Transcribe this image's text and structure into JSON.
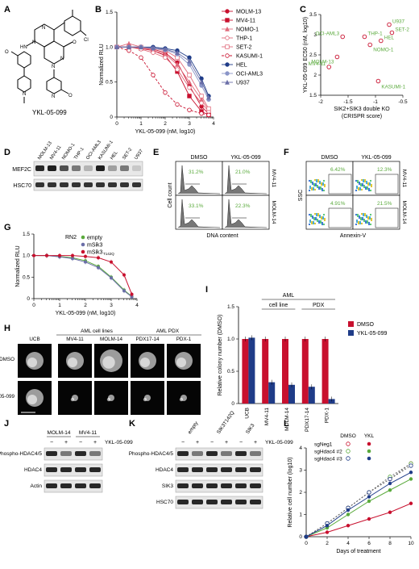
{
  "colors": {
    "red": "#c8102e",
    "pink": "#e06b7c",
    "blue": "#1f3c88",
    "lightblue": "#8a95c8",
    "green": "#5aaa3c",
    "purple": "#6b6fa8",
    "gray": "#bdbdbd"
  },
  "panels": {
    "A": {
      "letter": "A",
      "name": "YKL-05-099"
    },
    "B": {
      "letter": "B",
      "chart_data": {
        "type": "line",
        "xlabel": "YKL-05-099 (nM, log10)",
        "ylabel": "Normalized RLU",
        "xlim": [
          0,
          4
        ],
        "ylim": [
          0,
          1.5
        ],
        "xticks": [
          0,
          1,
          2,
          3,
          4
        ],
        "yticks": [
          0,
          0.5,
          1.0,
          1.5
        ],
        "series": [
          {
            "name": "MOLM-13",
            "color": "#c8102e",
            "marker": "circle-filled",
            "dash": false,
            "x": [
              0,
              0.5,
              1,
              1.5,
              2,
              2.5,
              3,
              3.5,
              3.8
            ],
            "y": [
              1.0,
              1.0,
              1.0,
              0.97,
              0.92,
              0.78,
              0.45,
              0.15,
              0.05
            ]
          },
          {
            "name": "MV4-11",
            "color": "#c8102e",
            "marker": "square-filled",
            "dash": false,
            "x": [
              0,
              0.5,
              1,
              1.5,
              2,
              2.5,
              3,
              3.5,
              3.8
            ],
            "y": [
              1.0,
              1.0,
              0.98,
              0.95,
              0.88,
              0.65,
              0.3,
              0.08,
              0.03
            ]
          },
          {
            "name": "NOMO-1",
            "color": "#e06b7c",
            "marker": "triangle-filled",
            "dash": false,
            "x": [
              0,
              0.5,
              1,
              1.5,
              2,
              2.5,
              3,
              3.5,
              3.8
            ],
            "y": [
              1.0,
              1.05,
              1.0,
              0.95,
              0.9,
              0.75,
              0.5,
              0.25,
              0.1
            ]
          },
          {
            "name": "THP-1",
            "color": "#e06b7c",
            "marker": "circle-open",
            "dash": false,
            "x": [
              0,
              0.5,
              1,
              1.5,
              2,
              2.5,
              3,
              3.5,
              3.8
            ],
            "y": [
              1.0,
              1.0,
              0.97,
              0.92,
              0.85,
              0.68,
              0.42,
              0.2,
              0.08
            ]
          },
          {
            "name": "SET-2",
            "color": "#e06b7c",
            "marker": "square-open",
            "dash": false,
            "x": [
              0,
              0.5,
              1,
              1.5,
              2,
              2.5,
              3,
              3.5,
              3.8
            ],
            "y": [
              1.0,
              1.0,
              1.0,
              0.98,
              0.95,
              0.85,
              0.6,
              0.3,
              0.12
            ]
          },
          {
            "name": "KASUMI-1",
            "color": "#c8102e",
            "marker": "circle-open",
            "dash": true,
            "x": [
              0,
              0.5,
              1,
              1.5,
              2,
              2.5,
              3,
              3.5,
              3.8
            ],
            "y": [
              1.0,
              0.95,
              0.85,
              0.6,
              0.35,
              0.18,
              0.1,
              0.05,
              0.03
            ]
          },
          {
            "name": "HEL",
            "color": "#1f3c88",
            "marker": "circle-filled",
            "dash": false,
            "x": [
              0,
              0.5,
              1,
              1.5,
              2,
              2.5,
              3,
              3.5,
              3.8
            ],
            "y": [
              1.0,
              1.0,
              1.0,
              1.0,
              0.98,
              0.95,
              0.85,
              0.55,
              0.3
            ]
          },
          {
            "name": "OCI-AML3",
            "color": "#8a95c8",
            "marker": "circle-filled",
            "dash": false,
            "x": [
              0,
              0.5,
              1,
              1.5,
              2,
              2.5,
              3,
              3.5,
              3.8
            ],
            "y": [
              1.0,
              1.0,
              1.0,
              0.98,
              0.96,
              0.9,
              0.75,
              0.45,
              0.25
            ]
          },
          {
            "name": "U937",
            "color": "#6b6fa8",
            "marker": "triangle-filled",
            "dash": false,
            "x": [
              0,
              0.5,
              1,
              1.5,
              2,
              2.5,
              3,
              3.5,
              3.8
            ],
            "y": [
              1.0,
              1.0,
              1.0,
              0.99,
              0.97,
              0.92,
              0.8,
              0.5,
              0.28
            ]
          }
        ]
      }
    },
    "C": {
      "letter": "C",
      "chart_data": {
        "type": "scatter",
        "xlabel": "SIK2+SIK3 double KO",
        "xlabel2": "(CRISPR score)",
        "ylabel": "YKL-05-099 EC50 (nM, log10)",
        "xlim": [
          -2.0,
          -0.5
        ],
        "ylim": [
          1.5,
          3.5
        ],
        "xticks": [
          "-2",
          "-1.5",
          "-1",
          "-0.5"
        ],
        "yticks": [
          "1.5",
          "2",
          "2.5",
          "3",
          "3.5"
        ],
        "points": [
          {
            "label": "U937",
            "x": -0.75,
            "y": 3.25
          },
          {
            "label": "SET-2",
            "x": -0.7,
            "y": 3.05
          },
          {
            "label": "THP-1",
            "x": -1.2,
            "y": 2.95
          },
          {
            "label": "OCI-AML3",
            "x": -1.6,
            "y": 2.95
          },
          {
            "label": "HEL",
            "x": -0.9,
            "y": 2.85
          },
          {
            "label": "NOMO-1",
            "x": -1.1,
            "y": 2.75
          },
          {
            "label": "MOLM-13",
            "x": -1.7,
            "y": 2.45
          },
          {
            "label": "MV4-11",
            "x": -1.85,
            "y": 2.2
          },
          {
            "label": "KASUMI-1",
            "x": -0.95,
            "y": 1.85
          }
        ]
      }
    },
    "D": {
      "letter": "D",
      "lanes": [
        "MOLM-13",
        "MV4-11",
        "NOMO-1",
        "THP-1",
        "OCI-AML3",
        "KASUMI-1",
        "HEL",
        "SET-2",
        "U937"
      ],
      "rows": [
        "MEF2C",
        "HSC70"
      ],
      "mef2c_intensity": [
        0.9,
        0.95,
        0.7,
        0.5,
        0.2,
        0.95,
        0.3,
        0.5,
        0.1
      ]
    },
    "E": {
      "letter": "E",
      "cols": [
        "DMSO",
        "YKL-05-099"
      ],
      "rows": [
        "MV4-11",
        "MOLM-14"
      ],
      "pct": [
        "31.2%",
        "21.0%",
        "33.1%",
        "22.3%"
      ],
      "ylabel": "Cell count",
      "xlabel": "DNA content"
    },
    "F": {
      "letter": "F",
      "cols": [
        "DMSO",
        "YKL-05-099"
      ],
      "rows": [
        "MV4-11",
        "MOLM-14"
      ],
      "pct": [
        "6.42%",
        "12.3%",
        "4.91%",
        "21.5%"
      ],
      "ylabel": "SSC",
      "xlabel": "Annexin-V"
    },
    "G": {
      "letter": "G",
      "chart_data": {
        "type": "line",
        "xlabel": "YKL-05-099 (nM, log10)",
        "ylabel": "Normalized RLU",
        "xlim": [
          0,
          4
        ],
        "ylim": [
          0,
          1.5
        ],
        "xticks": [
          0,
          1,
          2,
          3,
          4
        ],
        "yticks": [
          0,
          0.5,
          1.0,
          1.5
        ],
        "legend_title": "RN2",
        "series": [
          {
            "name": "empty",
            "color": "#5aaa3c",
            "x": [
              0,
              0.5,
              1,
              1.5,
              2,
              2.5,
              3,
              3.5,
              3.8
            ],
            "y": [
              1.0,
              1.0,
              0.98,
              0.95,
              0.88,
              0.75,
              0.5,
              0.2,
              0.05
            ]
          },
          {
            "name": "mSik3",
            "color": "#6b6fa8",
            "x": [
              0,
              0.5,
              1,
              1.5,
              2,
              2.5,
              3,
              3.5,
              3.8
            ],
            "y": [
              1.0,
              1.0,
              0.97,
              0.93,
              0.85,
              0.72,
              0.48,
              0.18,
              0.04
            ]
          },
          {
            "name": "mSik3 T142Q",
            "color": "#c8102e",
            "x": [
              0,
              0.5,
              1,
              1.5,
              2,
              2.5,
              3,
              3.5,
              3.8
            ],
            "y": [
              1.0,
              1.0,
              1.0,
              1.0,
              0.98,
              0.95,
              0.85,
              0.55,
              0.1
            ]
          }
        ]
      }
    },
    "H": {
      "letter": "H",
      "groups": [
        "AML cell lines",
        "AML PDX"
      ],
      "cols": [
        "UCB",
        "MV4-11",
        "MOLM-14",
        "PDX17-14",
        "PDX-1"
      ],
      "rows": [
        "DMSO",
        "YKL-05-099"
      ]
    },
    "I": {
      "letter": "I",
      "chart_data": {
        "type": "bar",
        "ylabel": "Relative colony number (DMSO)",
        "ylim": [
          0,
          1.5
        ],
        "yticks": [
          "0",
          "0.5",
          "1.0",
          "1.5"
        ],
        "categories": [
          "UCB",
          "MV4-11",
          "MOLM-14",
          "PDX17-14",
          "PDX-1"
        ],
        "group_labels": [
          "AML",
          "cell line",
          "PDX"
        ],
        "series": [
          {
            "name": "DMSO",
            "color": "#c8102e",
            "values": [
              1.0,
              1.0,
              1.0,
              1.0,
              1.0
            ]
          },
          {
            "name": "YKL-05-099",
            "color": "#1f3c88",
            "values": [
              1.02,
              0.33,
              0.29,
              0.26,
              0.07
            ]
          }
        ]
      }
    },
    "J": {
      "letter": "J",
      "groups": [
        "MOLM-14",
        "MV4-11"
      ],
      "treat": [
        "−",
        "+",
        "−",
        "+"
      ],
      "treat_label": "YKL-05-099",
      "rows": [
        "Phospho-HDAC4/5",
        "HDAC4",
        "Actin"
      ]
    },
    "K": {
      "letter": "K",
      "groups": [
        "empty",
        "SIK3T142Q",
        "SIK3"
      ],
      "treat": [
        "−",
        "+",
        "−",
        "+",
        "−",
        "+"
      ],
      "treat_label": "YKL-05-099",
      "rows": [
        "Phospho-HDAC4/5",
        "HDAC4",
        "SIK3",
        "HSC70"
      ]
    },
    "L": {
      "letter": "L",
      "chart_data": {
        "type": "line",
        "xlabel": "Days of treatment",
        "ylabel": "Relative cell number (log10)",
        "xlim": [
          0,
          10
        ],
        "ylim": [
          0,
          4
        ],
        "xticks": [
          0,
          2,
          4,
          6,
          8,
          10
        ],
        "yticks": [
          0,
          1,
          2,
          3,
          4
        ],
        "legend_cols": [
          "DMSO",
          "YKL"
        ],
        "series": [
          {
            "name": "sgNeg1",
            "color": "#c8102e",
            "x": [
              0,
              2,
              4,
              6,
              8,
              10
            ],
            "dmso": [
              0,
              0.6,
              1.3,
              2.0,
              2.6,
              3.3
            ],
            "ykl": [
              0,
              0.2,
              0.5,
              0.8,
              1.1,
              1.5
            ]
          },
          {
            "name": "sgHdac4 #2",
            "color": "#5aaa3c",
            "x": [
              0,
              2,
              4,
              6,
              8,
              10
            ],
            "dmso": [
              0,
              0.6,
              1.3,
              2.0,
              2.7,
              3.3
            ],
            "ykl": [
              0,
              0.4,
              1.0,
              1.6,
              2.1,
              2.6
            ]
          },
          {
            "name": "sgHdac4 #3",
            "color": "#1f3c88",
            "x": [
              0,
              2,
              4,
              6,
              8,
              10
            ],
            "dmso": [
              0,
              0.6,
              1.3,
              2.0,
              2.6,
              3.2
            ],
            "ykl": [
              0,
              0.5,
              1.2,
              1.8,
              2.4,
              2.9
            ]
          }
        ]
      }
    }
  }
}
